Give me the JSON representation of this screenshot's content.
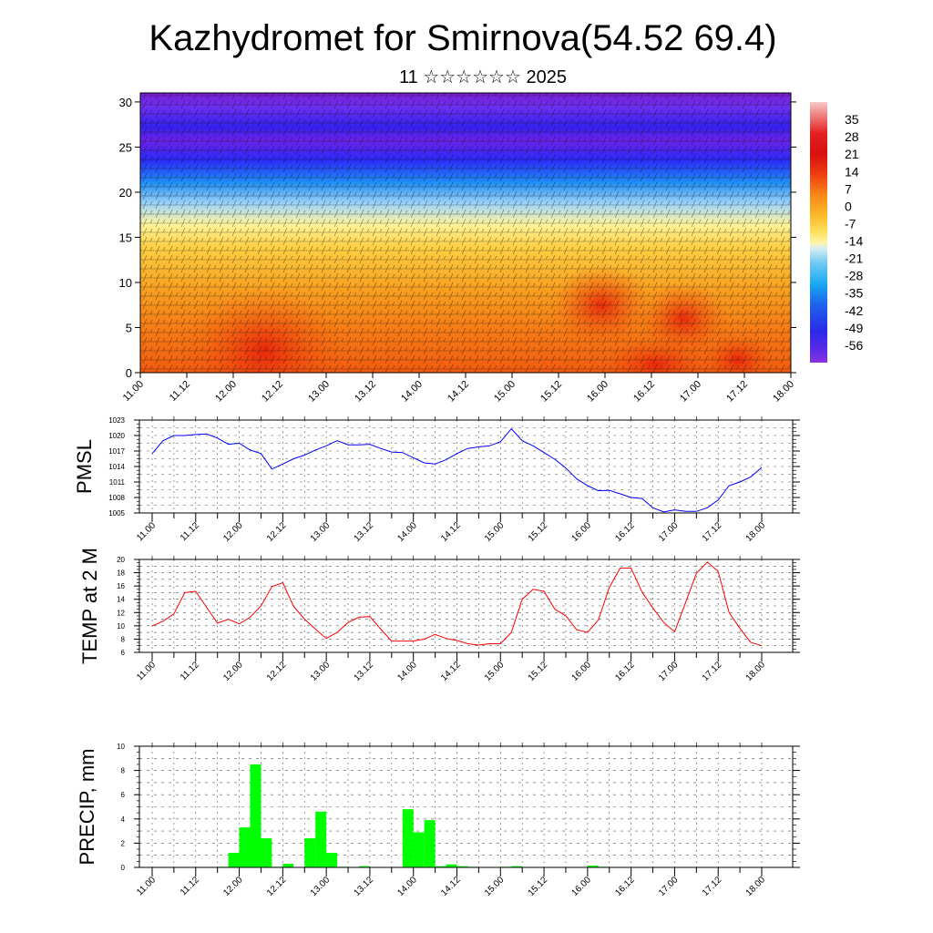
{
  "title": "Kazhydromet for Smirnova(54.52 69.4)",
  "subtitle": "11 ☆☆☆☆☆☆ 2025",
  "colors": {
    "pmsl_line": "#0000ff",
    "temp_line": "#ff0000",
    "precip_bar": "#00ff00",
    "grid": "#555555"
  },
  "chart_data": [
    {
      "type": "heatmap",
      "name": "cross-section",
      "x_tick_labels": [
        "11.00",
        "11.12",
        "12.00",
        "12.12",
        "13.00",
        "13.12",
        "14.00",
        "14.12",
        "15.00",
        "15.12",
        "16.00",
        "16.12",
        "17.00",
        "17.12",
        "18.00"
      ],
      "y_ticks": [
        0,
        5,
        10,
        15,
        20,
        25,
        30
      ],
      "ylim": [
        0,
        31
      ],
      "colorbar_labels": [
        "35",
        "28",
        "21",
        "14",
        "7",
        "0",
        "-7",
        "-14",
        "-21",
        "-28",
        "-35",
        "-42",
        "-49",
        "-56"
      ],
      "colorbar_range": [
        -63,
        42
      ],
      "overlay": "wind barbs"
    },
    {
      "type": "line",
      "name": "pmsl",
      "ylabel": "PMSL",
      "x_tick_labels": [
        "11.00",
        "11.12",
        "12.00",
        "12.12",
        "13.00",
        "13.12",
        "14.00",
        "14.12",
        "15.00",
        "15.12",
        "16.00",
        "16.12",
        "17.00",
        "17.12",
        "18.00"
      ],
      "y_ticks": [
        1005,
        1008,
        1011,
        1014,
        1017,
        1020,
        1023
      ],
      "ylim": [
        1005,
        1023
      ],
      "x_hours": [
        0,
        3,
        6,
        9,
        12,
        15,
        18,
        21,
        24,
        27,
        30,
        33,
        36,
        39,
        42,
        45,
        48,
        51,
        54,
        57,
        60,
        63,
        66,
        69,
        72,
        75,
        78,
        81,
        84,
        87,
        90,
        93,
        96,
        99,
        102,
        105,
        108,
        111,
        114,
        117,
        120,
        123,
        126,
        129,
        132,
        135,
        138,
        141,
        144,
        147,
        150,
        153,
        156,
        159,
        162,
        165,
        168
      ],
      "values": [
        1016.5,
        1019.0,
        1020.0,
        1020.0,
        1020.2,
        1020.3,
        1019.5,
        1018.3,
        1018.5,
        1017.2,
        1016.5,
        1013.5,
        1014.5,
        1015.5,
        1016.2,
        1017.2,
        1018.0,
        1019.0,
        1018.2,
        1018.2,
        1018.3,
        1017.5,
        1016.8,
        1016.7,
        1015.7,
        1014.7,
        1014.5,
        1015.3,
        1016.5,
        1017.5,
        1017.8,
        1018.0,
        1018.8,
        1021.3,
        1019.0,
        1018.0,
        1016.7,
        1015.4,
        1013.7,
        1011.6,
        1010.3,
        1009.3,
        1009.4,
        1008.7,
        1008.0,
        1007.8,
        1006.0,
        1005.2,
        1005.6,
        1005.3,
        1005.3,
        1006.0,
        1007.5,
        1010.3,
        1011.0,
        1012.0,
        1013.8
      ]
    },
    {
      "type": "line",
      "name": "temp",
      "ylabel": "TEMP at 2 M",
      "x_tick_labels": [
        "11.00",
        "11.12",
        "12.00",
        "12.12",
        "13.00",
        "13.12",
        "14.00",
        "14.12",
        "15.00",
        "15.12",
        "16.00",
        "16.12",
        "17.00",
        "17.12",
        "18.00"
      ],
      "y_ticks": [
        6,
        8,
        10,
        12,
        14,
        16,
        18,
        20
      ],
      "ylim": [
        6,
        20
      ],
      "x_hours": [
        0,
        3,
        6,
        9,
        12,
        15,
        18,
        21,
        24,
        27,
        30,
        33,
        36,
        39,
        42,
        45,
        48,
        51,
        54,
        57,
        60,
        63,
        66,
        69,
        72,
        75,
        78,
        81,
        84,
        87,
        90,
        93,
        96,
        99,
        102,
        105,
        108,
        111,
        114,
        117,
        120,
        123,
        126,
        129,
        132,
        135,
        138,
        141,
        144,
        147,
        150,
        153,
        156,
        159,
        162,
        165,
        168
      ],
      "values": [
        10.0,
        10.7,
        11.8,
        15.0,
        15.2,
        12.8,
        10.4,
        11.0,
        10.3,
        11.3,
        13.0,
        15.9,
        16.5,
        12.9,
        11.0,
        9.5,
        8.1,
        9.0,
        10.5,
        11.3,
        11.4,
        9.5,
        7.7,
        7.7,
        7.7,
        8.0,
        8.7,
        8.1,
        7.8,
        7.3,
        7.1,
        7.3,
        7.3,
        9.0,
        14.0,
        15.5,
        15.2,
        12.5,
        11.5,
        9.4,
        9.0,
        10.9,
        15.8,
        18.7,
        18.7,
        15.1,
        12.7,
        10.5,
        9.1,
        13.5,
        17.9,
        19.6,
        18.2,
        12.0,
        9.6,
        7.5,
        7.0
      ]
    },
    {
      "type": "bar",
      "name": "precip",
      "ylabel": "PRECIP, mm",
      "x_tick_labels": [
        "11.00",
        "11.12",
        "12.00",
        "12.12",
        "13.00",
        "13.12",
        "14.00",
        "14.12",
        "15.00",
        "15.12",
        "16.00",
        "16.12",
        "17.00",
        "17.12",
        "18.00"
      ],
      "y_ticks": [
        0,
        2,
        4,
        6,
        8,
        10
      ],
      "ylim": [
        0,
        10
      ],
      "bar_width_hours": 3,
      "x_hours": [
        18,
        21,
        24,
        27,
        30,
        33,
        36,
        39,
        42,
        45,
        48,
        51,
        54,
        57,
        60,
        63,
        66,
        69,
        72,
        75,
        78,
        81,
        84,
        87,
        90,
        93,
        96,
        99,
        102,
        105,
        108,
        111,
        114,
        117,
        120,
        123,
        126,
        129,
        132,
        135,
        138,
        141,
        144
      ],
      "values": [
        0.05,
        1.2,
        3.3,
        8.5,
        2.4,
        0.05,
        0.3,
        0.0,
        2.4,
        4.6,
        1.2,
        0.05,
        0.0,
        0.1,
        0.0,
        0.0,
        0.0,
        4.8,
        2.9,
        3.9,
        0.1,
        0.25,
        0.1,
        0.05,
        0.0,
        0.0,
        0.05,
        0.1,
        0.0,
        0.0,
        0.0,
        0.0,
        0.0,
        0.0,
        0.15,
        0.05,
        0.0,
        0.0,
        0.0,
        0.0,
        0.0,
        0.0,
        0.0
      ]
    }
  ]
}
